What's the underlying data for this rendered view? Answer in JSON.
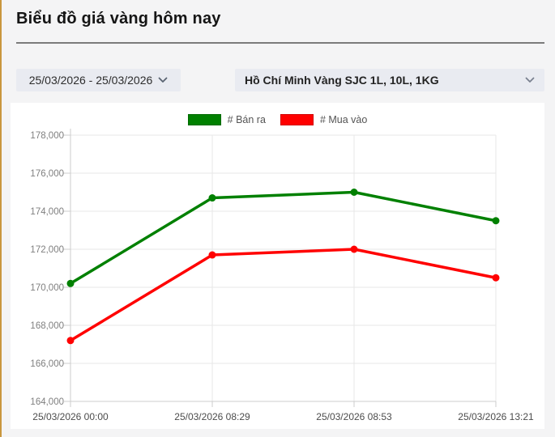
{
  "page": {
    "title": "Biểu đồ giá vàng hôm nay"
  },
  "controls": {
    "date_range": {
      "value": "25/03/2026 - 25/03/2026",
      "icon": "chevron-down"
    },
    "market": {
      "value": "Hồ Chí Minh Vàng SJC 1L, 10L, 1KG",
      "icon": "chevron-down"
    }
  },
  "chart_data": {
    "type": "line",
    "title": "",
    "x": [
      "25/03/2026 00:00",
      "25/03/2026 08:29",
      "25/03/2026 08:53",
      "25/03/2026 13:21"
    ],
    "series": [
      {
        "name": "# Bán ra",
        "color": "#008000",
        "values": [
          170200,
          174700,
          175000,
          173500
        ]
      },
      {
        "name": "# Mua vào",
        "color": "#ff0000",
        "values": [
          167200,
          171700,
          172000,
          170500
        ]
      }
    ],
    "ylim": [
      164000,
      178000
    ],
    "ytick_step": 2000,
    "ytick_labels": [
      "164,000",
      "166,000",
      "168,000",
      "170,000",
      "172,000",
      "174,000",
      "176,000",
      "178,000"
    ],
    "grid": true,
    "legend_position": "top-center"
  },
  "colors": {
    "accent_gold": "#c9973e",
    "page_background": "#f4f4f5",
    "card_background": "#ffffff",
    "control_background": "#e9ebf1",
    "divider": "#7b7b7b",
    "series_sell": "#008000",
    "series_buy": "#ff0000",
    "grid_line": "#e7e7e7",
    "axis_line": "#cccccc",
    "y_label": "#7f7f7f",
    "x_label": "#4c4c4c",
    "legend_label": "#545454"
  }
}
